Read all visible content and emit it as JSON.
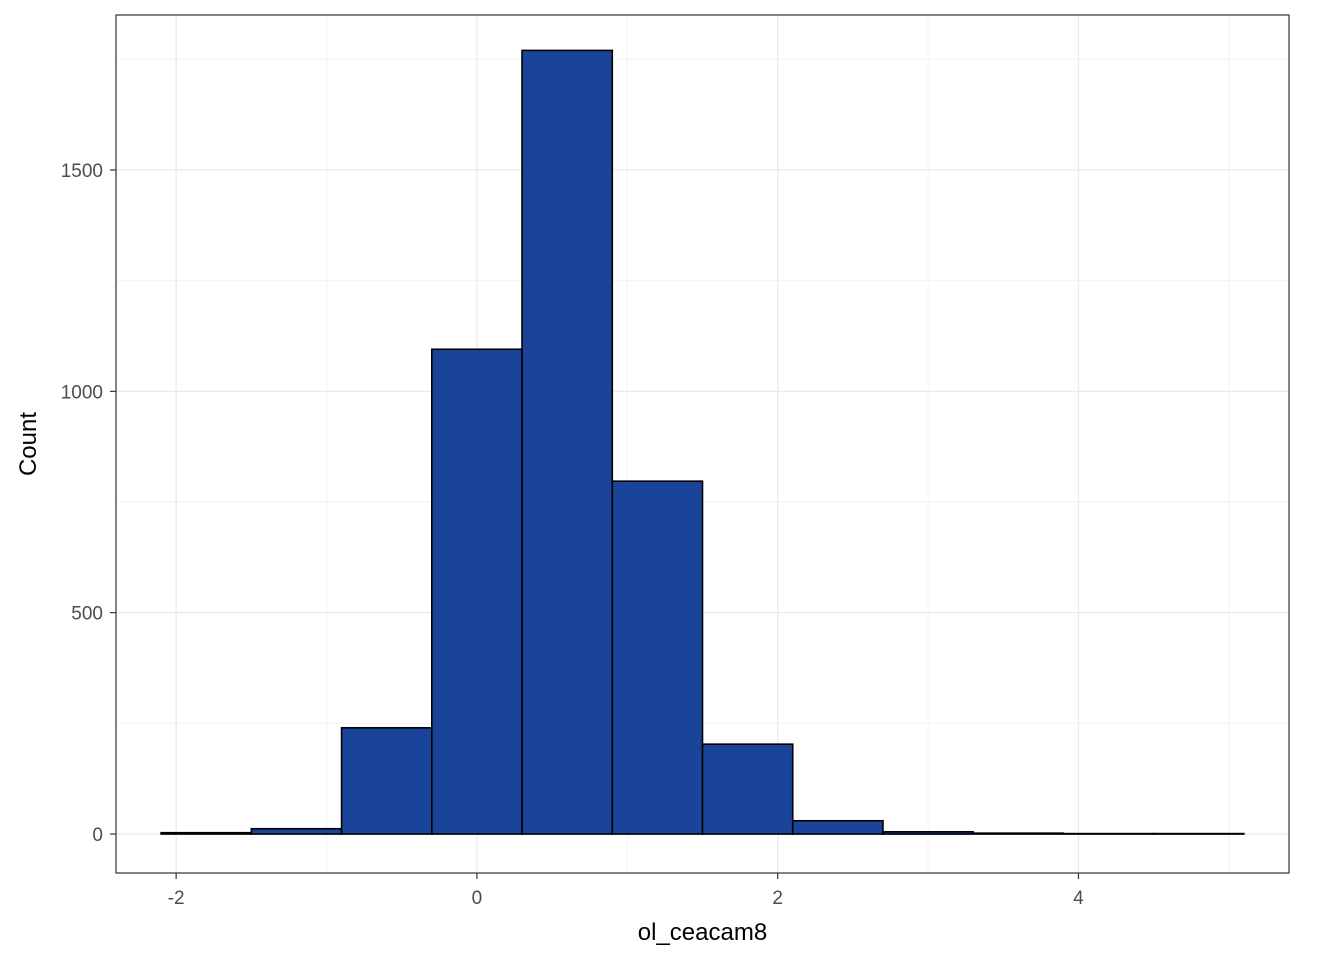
{
  "chart_data": {
    "type": "bar",
    "subtype": "histogram",
    "title": "",
    "xlabel": "ol_ceacam8",
    "ylabel": "Count",
    "xlim": [
      -2.4,
      5.4
    ],
    "ylim": [
      -88,
      1850
    ],
    "x_ticks": [
      -2,
      0,
      2,
      4
    ],
    "x_tick_labels": [
      "-2",
      "0",
      "2",
      "4"
    ],
    "y_ticks": [
      0,
      500,
      1000,
      1500
    ],
    "y_tick_labels": [
      "0",
      "500",
      "1000",
      "1500"
    ],
    "bins": [
      {
        "start": -2.1,
        "end": -1.5,
        "count": 3
      },
      {
        "start": -1.5,
        "end": -0.9,
        "count": 12
      },
      {
        "start": -0.9,
        "end": -0.3,
        "count": 240
      },
      {
        "start": -0.3,
        "end": 0.3,
        "count": 1095
      },
      {
        "start": 0.3,
        "end": 0.9,
        "count": 1770
      },
      {
        "start": 0.9,
        "end": 1.5,
        "count": 797
      },
      {
        "start": 1.5,
        "end": 2.1,
        "count": 203
      },
      {
        "start": 2.1,
        "end": 2.7,
        "count": 30
      },
      {
        "start": 2.7,
        "end": 3.3,
        "count": 5
      },
      {
        "start": 3.3,
        "end": 3.9,
        "count": 2
      },
      {
        "start": 3.9,
        "end": 4.5,
        "count": 1
      },
      {
        "start": 4.5,
        "end": 5.1,
        "count": 1
      }
    ],
    "grid": true,
    "legend": "none",
    "colors": {
      "bar_fill": "#1A449A",
      "bar_outline": "#000000",
      "grid_major": "#EBEBEB",
      "grid_minor": "#F2F2F2",
      "panel_border": "#333333"
    }
  }
}
